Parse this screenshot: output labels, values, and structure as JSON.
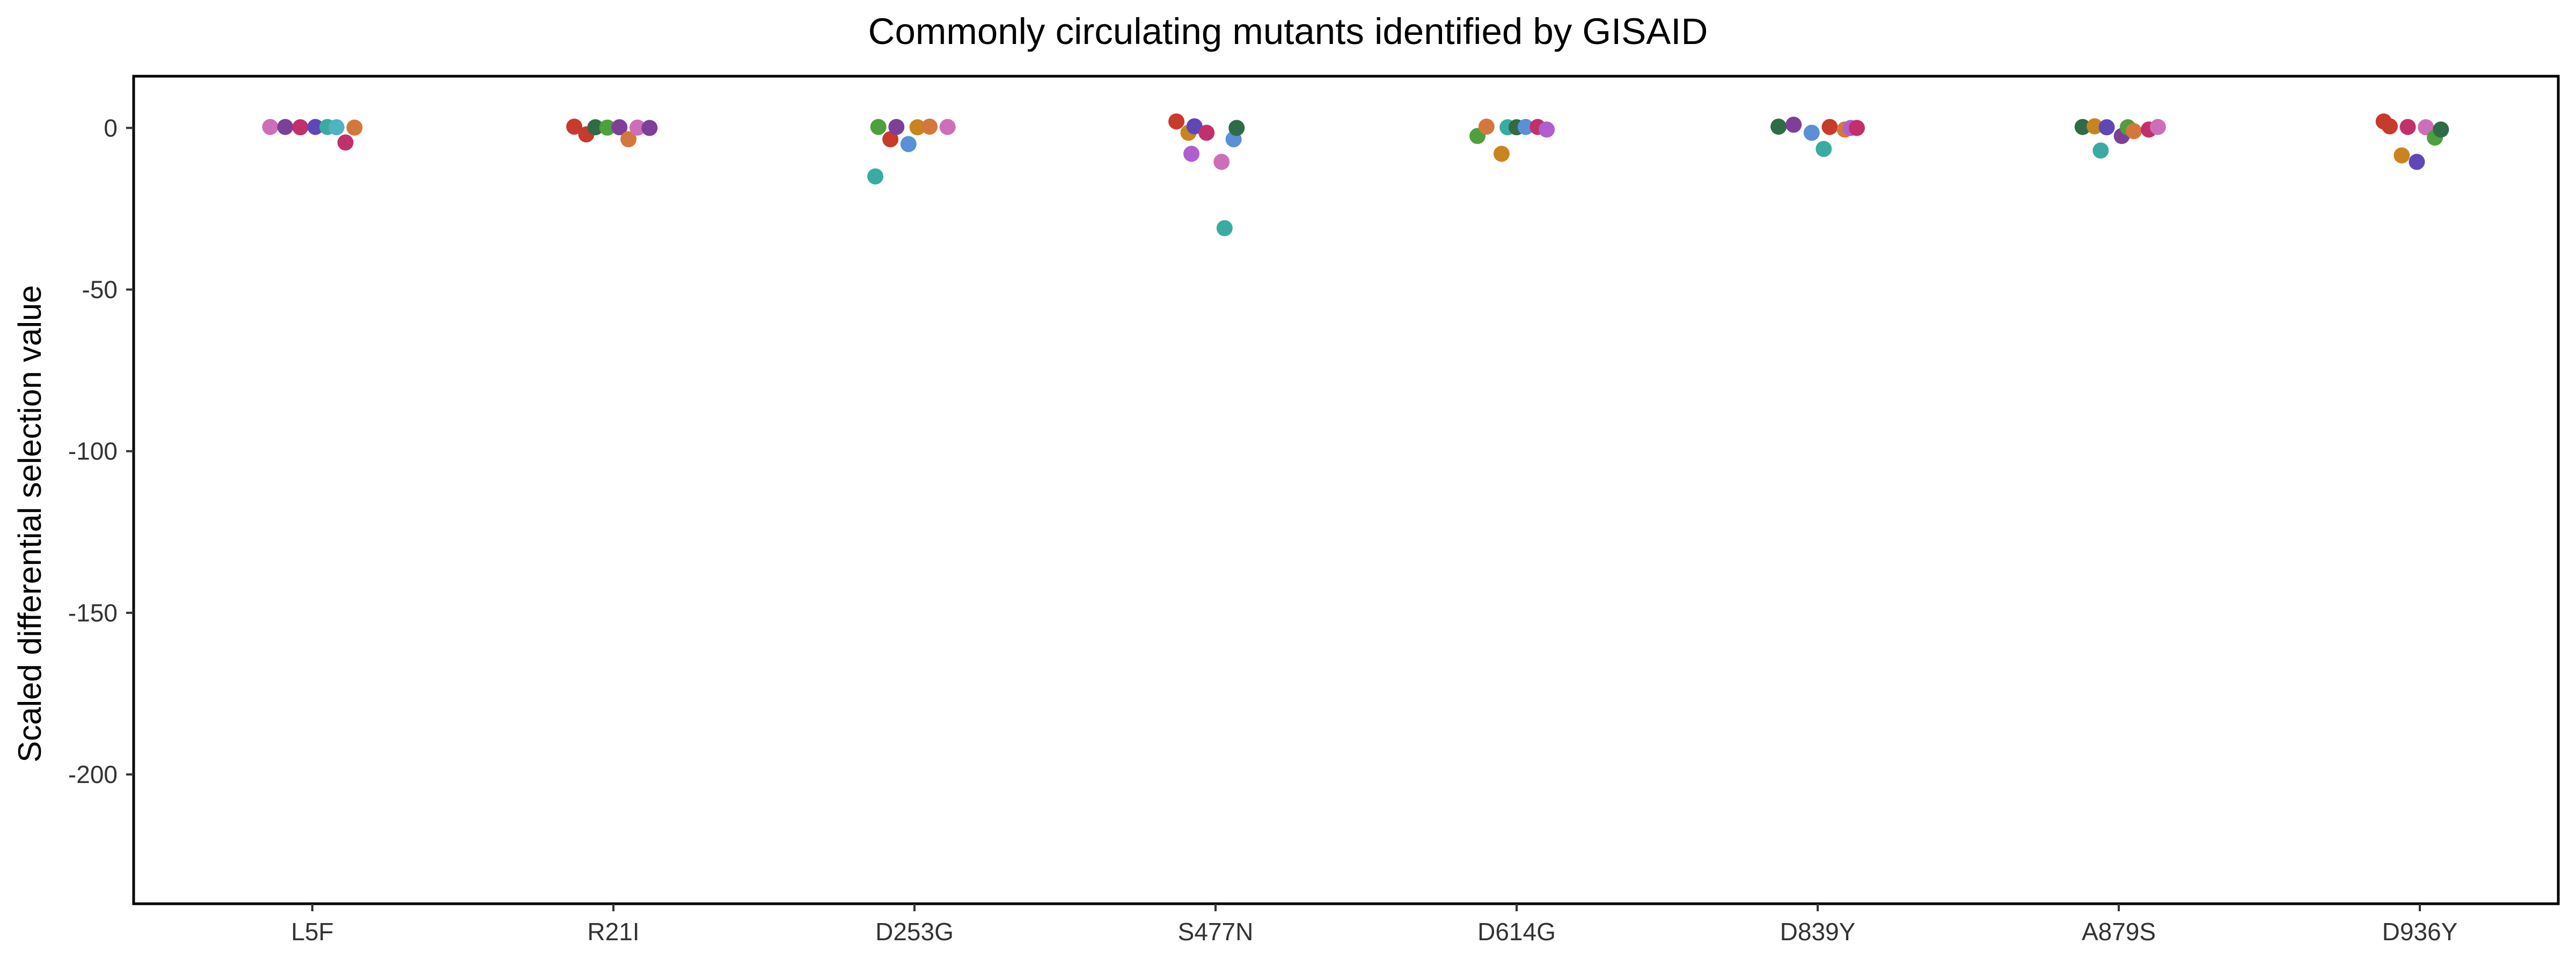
{
  "chart_data": {
    "type": "scatter",
    "title": "Commonly circulating mutants identified by GISAID",
    "xlabel": "",
    "ylabel": "Scaled differential selection value",
    "categories": [
      "L5F",
      "R21I",
      "D253G",
      "S477N",
      "D614G",
      "D839Y",
      "A879S",
      "D936Y"
    ],
    "ylim": [
      -240,
      16
    ],
    "yticks": [
      0,
      -50,
      -100,
      -150,
      -200
    ],
    "grid": false,
    "legend": "none",
    "colors": [
      "#c73a2c",
      "#d4773e",
      "#c8851f",
      "#4e9f3d",
      "#2f6b47",
      "#3aaba0",
      "#4fb3c2",
      "#5b8fd6",
      "#5f47b8",
      "#7d3f98",
      "#b05ecf",
      "#cc6fb8",
      "#c2306b"
    ],
    "points": [
      {
        "cat": 0,
        "offset": -0.14,
        "y": 0.3,
        "color": 11
      },
      {
        "cat": 0,
        "offset": -0.09,
        "y": 0.3,
        "color": 9
      },
      {
        "cat": 0,
        "offset": -0.04,
        "y": 0.2,
        "color": 12
      },
      {
        "cat": 0,
        "offset": 0.01,
        "y": 0.3,
        "color": 8
      },
      {
        "cat": 0,
        "offset": 0.05,
        "y": 0.3,
        "color": 5
      },
      {
        "cat": 0,
        "offset": 0.08,
        "y": 0.2,
        "color": 6
      },
      {
        "cat": 0,
        "offset": 0.11,
        "y": -4.5,
        "color": 12
      },
      {
        "cat": 0,
        "offset": 0.14,
        "y": 0.1,
        "color": 1
      },
      {
        "cat": 1,
        "offset": -0.13,
        "y": 0.4,
        "color": 0
      },
      {
        "cat": 1,
        "offset": -0.09,
        "y": -2,
        "color": 0
      },
      {
        "cat": 1,
        "offset": -0.06,
        "y": 0.2,
        "color": 4
      },
      {
        "cat": 1,
        "offset": -0.02,
        "y": 0.1,
        "color": 3
      },
      {
        "cat": 1,
        "offset": 0.02,
        "y": 0.2,
        "color": 9
      },
      {
        "cat": 1,
        "offset": 0.05,
        "y": -3.5,
        "color": 1
      },
      {
        "cat": 1,
        "offset": 0.08,
        "y": 0.1,
        "color": 11
      },
      {
        "cat": 1,
        "offset": 0.12,
        "y": 0,
        "color": 9
      },
      {
        "cat": 2,
        "offset": -0.13,
        "y": -15,
        "color": 5
      },
      {
        "cat": 2,
        "offset": -0.12,
        "y": 0.3,
        "color": 3
      },
      {
        "cat": 2,
        "offset": -0.08,
        "y": -3.5,
        "color": 0
      },
      {
        "cat": 2,
        "offset": -0.06,
        "y": 0.3,
        "color": 9
      },
      {
        "cat": 2,
        "offset": -0.02,
        "y": -5,
        "color": 7
      },
      {
        "cat": 2,
        "offset": 0.01,
        "y": 0.2,
        "color": 2
      },
      {
        "cat": 2,
        "offset": 0.05,
        "y": 0.4,
        "color": 1
      },
      {
        "cat": 2,
        "offset": 0.11,
        "y": 0.3,
        "color": 11
      },
      {
        "cat": 3,
        "offset": -0.13,
        "y": 2,
        "color": 0
      },
      {
        "cat": 3,
        "offset": -0.09,
        "y": -1.5,
        "color": 2
      },
      {
        "cat": 3,
        "offset": -0.08,
        "y": -8,
        "color": 10
      },
      {
        "cat": 3,
        "offset": -0.07,
        "y": 0.5,
        "color": 8
      },
      {
        "cat": 3,
        "offset": -0.03,
        "y": -1.5,
        "color": 12
      },
      {
        "cat": 3,
        "offset": 0.02,
        "y": -10.5,
        "color": 11
      },
      {
        "cat": 3,
        "offset": 0.03,
        "y": -31,
        "color": 5
      },
      {
        "cat": 3,
        "offset": 0.06,
        "y": -3.5,
        "color": 7
      },
      {
        "cat": 3,
        "offset": 0.07,
        "y": 0,
        "color": 4
      },
      {
        "cat": 4,
        "offset": -0.13,
        "y": -2.5,
        "color": 3
      },
      {
        "cat": 4,
        "offset": -0.1,
        "y": 0.4,
        "color": 1
      },
      {
        "cat": 4,
        "offset": -0.05,
        "y": -8,
        "color": 2
      },
      {
        "cat": 4,
        "offset": -0.03,
        "y": 0.2,
        "color": 5
      },
      {
        "cat": 4,
        "offset": 0,
        "y": 0.2,
        "color": 4
      },
      {
        "cat": 4,
        "offset": 0.03,
        "y": 0.3,
        "color": 7
      },
      {
        "cat": 4,
        "offset": 0.07,
        "y": 0.3,
        "color": 12
      },
      {
        "cat": 4,
        "offset": 0.1,
        "y": -0.5,
        "color": 10
      },
      {
        "cat": 5,
        "offset": -0.13,
        "y": 0.4,
        "color": 4
      },
      {
        "cat": 5,
        "offset": -0.08,
        "y": 1,
        "color": 9
      },
      {
        "cat": 5,
        "offset": -0.02,
        "y": -1.5,
        "color": 7
      },
      {
        "cat": 5,
        "offset": 0.02,
        "y": -6.5,
        "color": 5
      },
      {
        "cat": 5,
        "offset": 0.04,
        "y": 0.3,
        "color": 0
      },
      {
        "cat": 5,
        "offset": 0.09,
        "y": -0.5,
        "color": 1
      },
      {
        "cat": 5,
        "offset": 0.11,
        "y": 0,
        "color": 10
      },
      {
        "cat": 5,
        "offset": 0.13,
        "y": 0,
        "color": 12
      },
      {
        "cat": 6,
        "offset": -0.12,
        "y": 0.3,
        "color": 4
      },
      {
        "cat": 6,
        "offset": -0.08,
        "y": 0.5,
        "color": 2
      },
      {
        "cat": 6,
        "offset": -0.06,
        "y": -7,
        "color": 5
      },
      {
        "cat": 6,
        "offset": -0.04,
        "y": 0.2,
        "color": 8
      },
      {
        "cat": 6,
        "offset": 0.01,
        "y": -2.5,
        "color": 9
      },
      {
        "cat": 6,
        "offset": 0.03,
        "y": 0.2,
        "color": 3
      },
      {
        "cat": 6,
        "offset": 0.05,
        "y": -1,
        "color": 1
      },
      {
        "cat": 6,
        "offset": 0.1,
        "y": -0.5,
        "color": 12
      },
      {
        "cat": 6,
        "offset": 0.13,
        "y": 0.3,
        "color": 11
      },
      {
        "cat": 7,
        "offset": -0.12,
        "y": 2,
        "color": 0
      },
      {
        "cat": 7,
        "offset": -0.1,
        "y": 0.5,
        "color": 0
      },
      {
        "cat": 7,
        "offset": -0.06,
        "y": -8.5,
        "color": 2
      },
      {
        "cat": 7,
        "offset": -0.04,
        "y": 0.3,
        "color": 12
      },
      {
        "cat": 7,
        "offset": -0.01,
        "y": -10.5,
        "color": 8
      },
      {
        "cat": 7,
        "offset": 0.02,
        "y": 0.2,
        "color": 11
      },
      {
        "cat": 7,
        "offset": 0.05,
        "y": -3,
        "color": 3
      },
      {
        "cat": 7,
        "offset": 0.07,
        "y": -0.5,
        "color": 4
      }
    ]
  }
}
